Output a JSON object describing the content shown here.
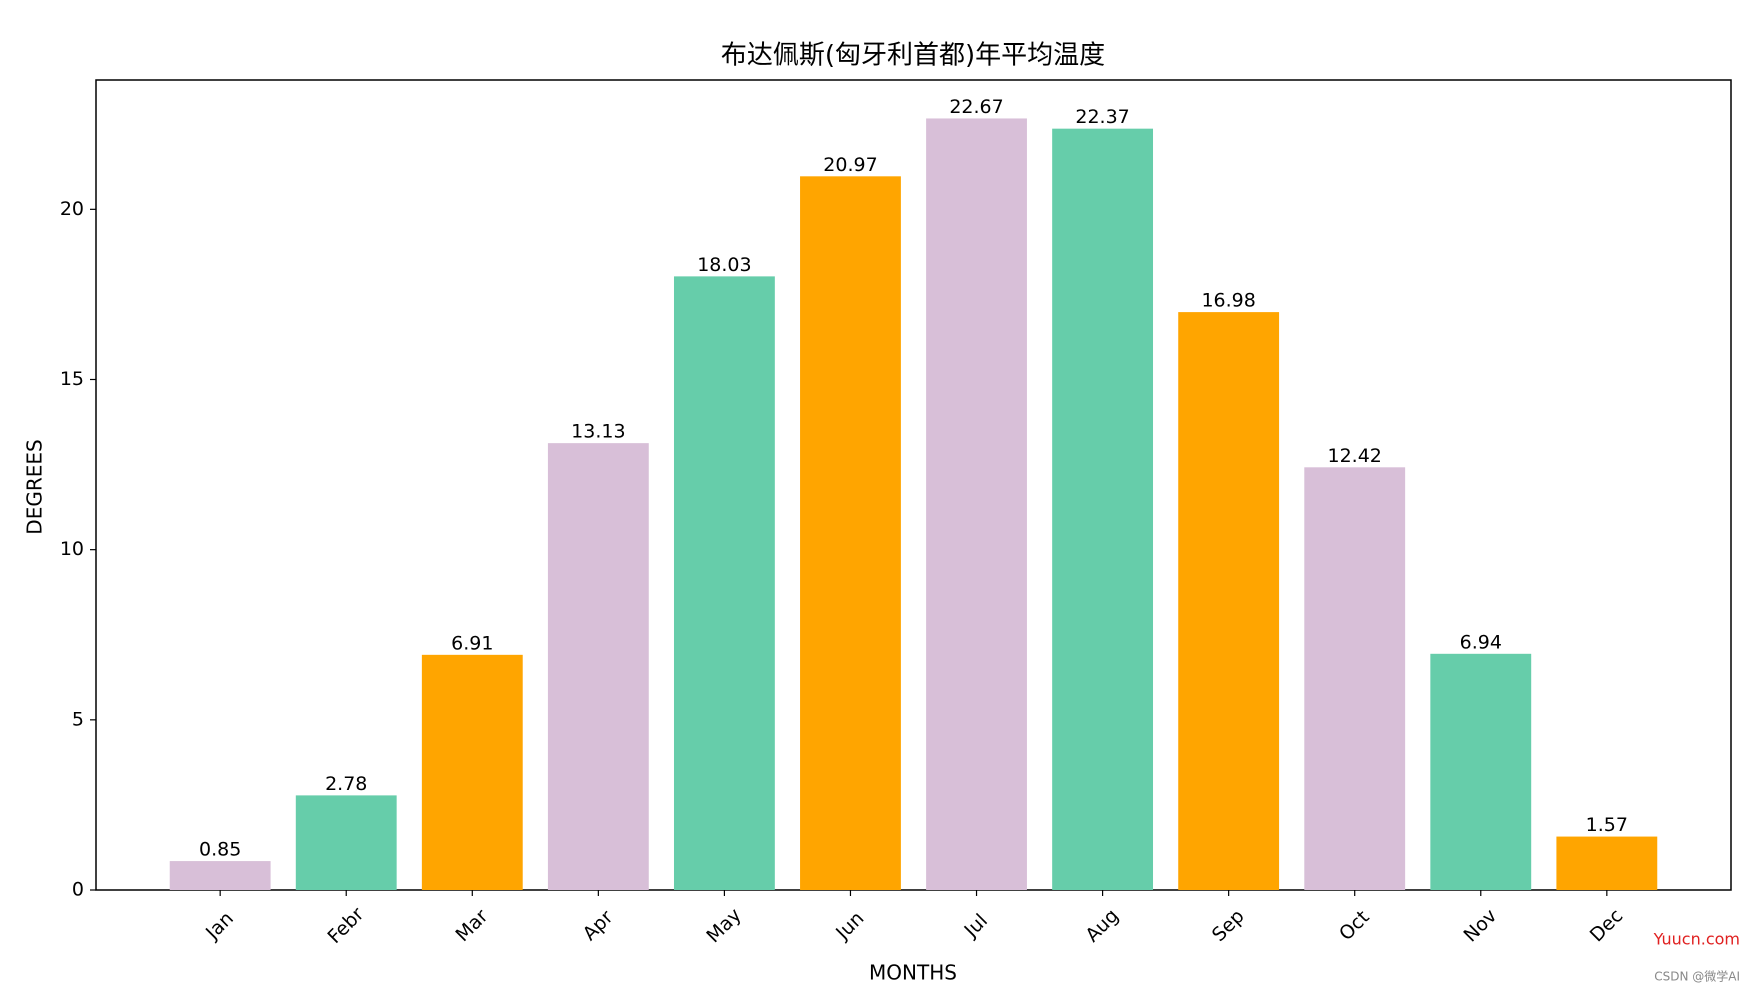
{
  "chart_data": {
    "type": "bar",
    "title": "布达佩斯(匈牙利首都)年平均温度",
    "x_label": "MONTHS",
    "y_label": "DEGREES",
    "categories": [
      "Jan",
      "Febr",
      "Mar",
      "Apr",
      "May",
      "Jun",
      "Jul",
      "Aug",
      "Sep",
      "Oct",
      "Nov",
      "Dec"
    ],
    "values": [
      0.85,
      2.78,
      6.91,
      13.13,
      18.03,
      20.97,
      22.67,
      22.37,
      16.98,
      12.42,
      6.94,
      1.57
    ],
    "colors": [
      "#d8bfd8",
      "#66cdaa",
      "#ffa500",
      "#d8bfd8",
      "#66cdaa",
      "#ffa500",
      "#d8bfd8",
      "#66cdaa",
      "#ffa500",
      "#d8bfd8",
      "#66cdaa",
      "#ffa500"
    ],
    "ylim": [
      0,
      23.8
    ],
    "yticks": [
      0,
      5,
      10,
      15,
      20
    ],
    "grid": false
  },
  "watermark": {
    "site": "Yuucn.com",
    "author": "CSDN @微学AI"
  }
}
